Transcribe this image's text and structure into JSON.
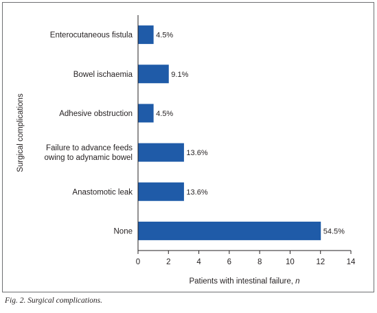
{
  "chart_data": {
    "type": "bar",
    "orientation": "horizontal",
    "categories": [
      [
        "Enterocutaneous fistula"
      ],
      [
        "Bowel ischaemia"
      ],
      [
        "Adhesive obstruction"
      ],
      [
        "Failure to advance feeds",
        "owing to adynamic bowel"
      ],
      [
        "Anastomotic leak"
      ],
      [
        "None"
      ]
    ],
    "values": [
      1,
      2,
      1,
      3,
      3,
      12
    ],
    "data_labels": [
      "4.5%",
      "9.1%",
      "4.5%",
      "13.6%",
      "13.6%",
      "54.5%"
    ],
    "xlabel": "Patients with intestinal failure,",
    "xlabel_var": "n",
    "ylabel": "Surgical complications",
    "xlim": [
      0,
      14
    ],
    "xticks": [
      0,
      2,
      4,
      6,
      8,
      10,
      12,
      14
    ],
    "bar_color": "#1f5ba8",
    "grid": false
  },
  "caption": "Fig. 2. Surgical complications."
}
